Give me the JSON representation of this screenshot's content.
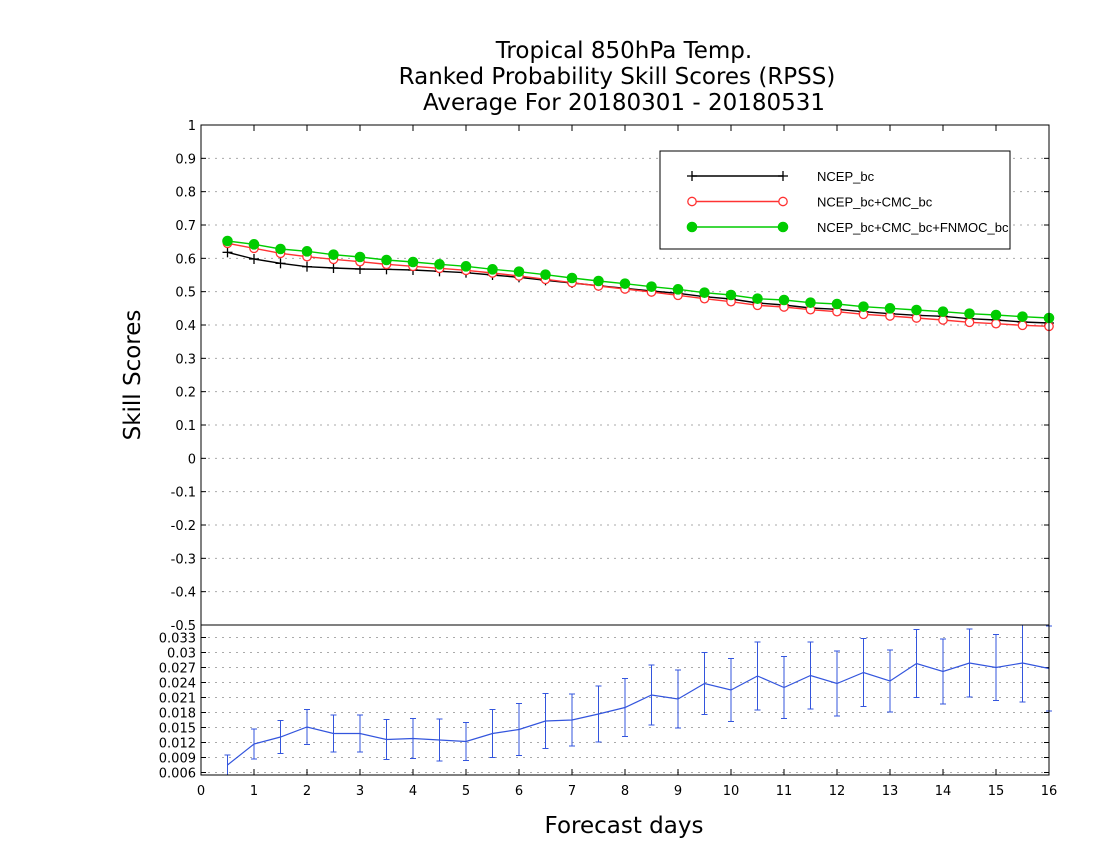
{
  "chart_data": [
    {
      "type": "line",
      "title": [
        "Tropical 850hPa Temp.",
        "Ranked Probability Skill Scores (RPSS)",
        "Average For 20180301 - 20180531"
      ],
      "ylabel": "Skill Scores",
      "xlabel": "",
      "ylim": [
        -0.5,
        1
      ],
      "yticks": [
        "1",
        "0.9",
        "0.8",
        "0.7",
        "0.6",
        "0.5",
        "0.4",
        "0.3",
        "0.2",
        "0.1",
        "0",
        "-0.1",
        "-0.2",
        "-0.3",
        "-0.4",
        "-0.5"
      ],
      "grid": true,
      "legend_position": "top-right",
      "x": [
        0.5,
        1,
        1.5,
        2,
        2.5,
        3,
        3.5,
        4,
        4.5,
        5,
        5.5,
        6,
        6.5,
        7,
        7.5,
        8,
        8.5,
        9,
        9.5,
        10,
        10.5,
        11,
        11.5,
        12,
        12.5,
        13,
        13.5,
        14,
        14.5,
        15,
        15.5,
        16
      ],
      "series": [
        {
          "name": "NCEP_bc",
          "color": "#000000",
          "marker": "plus",
          "values": [
            0.618,
            0.598,
            0.585,
            0.575,
            0.571,
            0.568,
            0.567,
            0.565,
            0.561,
            0.557,
            0.55,
            0.543,
            0.534,
            0.526,
            0.518,
            0.51,
            0.502,
            0.495,
            0.485,
            0.478,
            0.466,
            0.46,
            0.451,
            0.447,
            0.44,
            0.434,
            0.429,
            0.426,
            0.419,
            0.415,
            0.409,
            0.406
          ]
        },
        {
          "name": "NCEP_bc+CMC_bc",
          "color": "#ff3333",
          "marker": "open-circle",
          "values": [
            0.645,
            0.63,
            0.615,
            0.605,
            0.597,
            0.59,
            0.582,
            0.576,
            0.57,
            0.564,
            0.556,
            0.547,
            0.537,
            0.527,
            0.517,
            0.508,
            0.499,
            0.489,
            0.479,
            0.47,
            0.459,
            0.454,
            0.446,
            0.44,
            0.432,
            0.427,
            0.421,
            0.415,
            0.408,
            0.404,
            0.399,
            0.396
          ]
        },
        {
          "name": "NCEP_bc+CMC_bc+FNMOC_bc",
          "color": "#00cc00",
          "marker": "filled-circle",
          "values": [
            0.652,
            0.642,
            0.628,
            0.621,
            0.611,
            0.604,
            0.595,
            0.589,
            0.582,
            0.576,
            0.567,
            0.56,
            0.551,
            0.541,
            0.532,
            0.524,
            0.515,
            0.507,
            0.497,
            0.49,
            0.479,
            0.475,
            0.467,
            0.463,
            0.455,
            0.45,
            0.445,
            0.44,
            0.434,
            0.43,
            0.425,
            0.421
          ]
        }
      ]
    },
    {
      "type": "line",
      "xlabel": "Forecast days",
      "ylabel": "",
      "xlim": [
        0,
        16
      ],
      "xticks": [
        "0",
        "1",
        "2",
        "3",
        "4",
        "5",
        "6",
        "7",
        "8",
        "9",
        "10",
        "11",
        "12",
        "13",
        "14",
        "15",
        "16"
      ],
      "ylim": [
        0.0055,
        0.0355
      ],
      "yticks": [
        "0.033",
        "0.03",
        "0.027",
        "0.024",
        "0.021",
        "0.018",
        "0.015",
        "0.012",
        "0.009",
        "0.006"
      ],
      "grid": true,
      "x": [
        0.5,
        1,
        1.5,
        2,
        2.5,
        3,
        3.5,
        4,
        4.5,
        5,
        5.5,
        6,
        6.5,
        7,
        7.5,
        8,
        8.5,
        9,
        9.5,
        10,
        10.5,
        11,
        11.5,
        12,
        12.5,
        13,
        13.5,
        14,
        14.5,
        15,
        15.5,
        16
      ],
      "series": [
        {
          "color": "#3355dd",
          "values": [
            0.0075,
            0.0117,
            0.0131,
            0.0151,
            0.0138,
            0.0138,
            0.0126,
            0.0128,
            0.0125,
            0.0122,
            0.0138,
            0.0146,
            0.0163,
            0.0165,
            0.0177,
            0.019,
            0.0215,
            0.0207,
            0.0238,
            0.0225,
            0.0253,
            0.023,
            0.0254,
            0.0238,
            0.026,
            0.0243,
            0.0278,
            0.0262,
            0.0279,
            0.027,
            0.0279,
            0.0268
          ],
          "error": [
            0.002,
            0.003,
            0.0033,
            0.0035,
            0.0037,
            0.0037,
            0.004,
            0.004,
            0.0042,
            0.0038,
            0.0048,
            0.0052,
            0.0055,
            0.0052,
            0.0056,
            0.0058,
            0.006,
            0.0058,
            0.0062,
            0.0063,
            0.0068,
            0.0062,
            0.0067,
            0.0065,
            0.0068,
            0.0062,
            0.0068,
            0.0065,
            0.0068,
            0.0066,
            0.0078,
            0.0085
          ]
        }
      ]
    }
  ]
}
